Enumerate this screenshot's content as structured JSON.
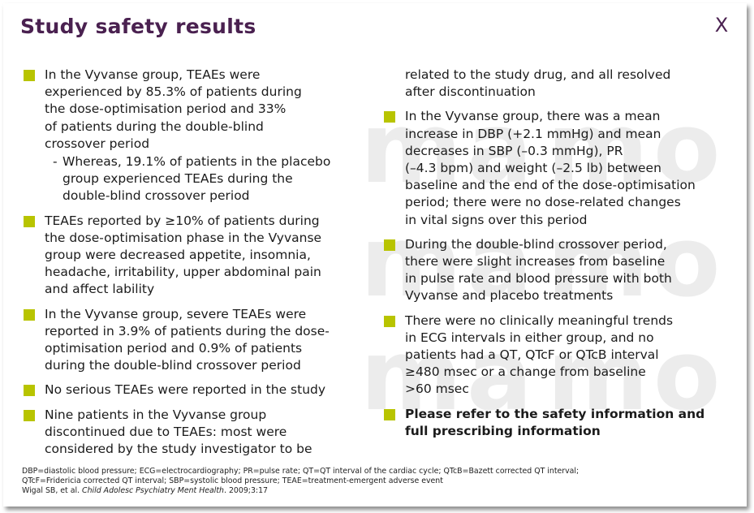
{
  "slide": {
    "title": "Study safety results",
    "close_label": "X",
    "watermark_lines": [
      "ma",
      "mo",
      "ma",
      "mo",
      "ma",
      "mo"
    ],
    "accent_color": "#b8c400",
    "title_color": "#4a2150"
  },
  "left_column": {
    "b1_lines": [
      "In the Vyvanse group, TEAEs were",
      "experienced by 85.3% of patients during",
      "the dose-optimisation period and 33%",
      "of patients during the double-blind",
      "crossover period"
    ],
    "b1_sub_dash": "-",
    "b1_sub_lines": [
      "Whereas, 19.1% of patients in the placebo",
      "group experienced TEAEs during the",
      "double-blind crossover period"
    ],
    "b2_lines": [
      "TEAEs reported by ≥10% of patients during",
      "the dose-optimisation phase in the Vyvanse",
      "group were decreased appetite, insomnia,",
      "headache, irritability, upper abdominal pain",
      "and affect lability"
    ],
    "b3_lines": [
      "In the Vyvanse group, severe TEAEs were",
      "reported in 3.9% of patients during the dose-",
      "optimisation period and 0.9% of patients",
      "during the double-blind crossover period"
    ],
    "b4_lines": [
      "No serious TEAEs were reported in the study"
    ],
    "b5_lines": [
      "Nine patients in the Vyvanse group",
      "discontinued due to TEAEs: most were",
      "considered by the study investigator to be"
    ]
  },
  "right_column": {
    "cont_lines": [
      "related to the study drug, and all resolved",
      "after discontinuation"
    ],
    "b6_lines": [
      "In the Vyvanse group, there was a mean",
      "increase in DBP (+2.1 mmHg) and mean",
      "decreases in SBP (–0.3 mmHg), PR",
      "(–4.3 bpm) and weight (–2.5 lb) between",
      "baseline and the end of the dose-optimisation",
      "period; there were no dose-related changes",
      "in vital signs over this period"
    ],
    "b7_lines": [
      "During the double-blind crossover period,",
      "there were slight increases from baseline",
      "in pulse rate and blood pressure with both",
      "Vyvanse and placebo treatments"
    ],
    "b8_lines": [
      "There were no clinically meaningful trends",
      "in ECG intervals in either group, and no",
      "patients had a QT, QTcF or QTcB interval",
      "≥480 msec or a change from baseline",
      ">60 msec"
    ],
    "b9_lines": [
      "Please refer to the safety information and",
      "full prescribing information"
    ]
  },
  "footer": {
    "abbrev_line1": "DBP=diastolic blood pressure; ECG=electrocardiography; PR=pulse rate; QT=QT interval of the cardiac cycle; QTcB=Bazett corrected QT interval;",
    "abbrev_line2": "QTcF=Fridericia corrected QT interval; SBP=systolic blood pressure; TEAE=treatment-emergent adverse event",
    "ref_author": "Wigal SB, et al.",
    "ref_journal": "Child Adolesc Psychiatry Ment Health",
    "ref_tail": ". 2009;3:17"
  }
}
